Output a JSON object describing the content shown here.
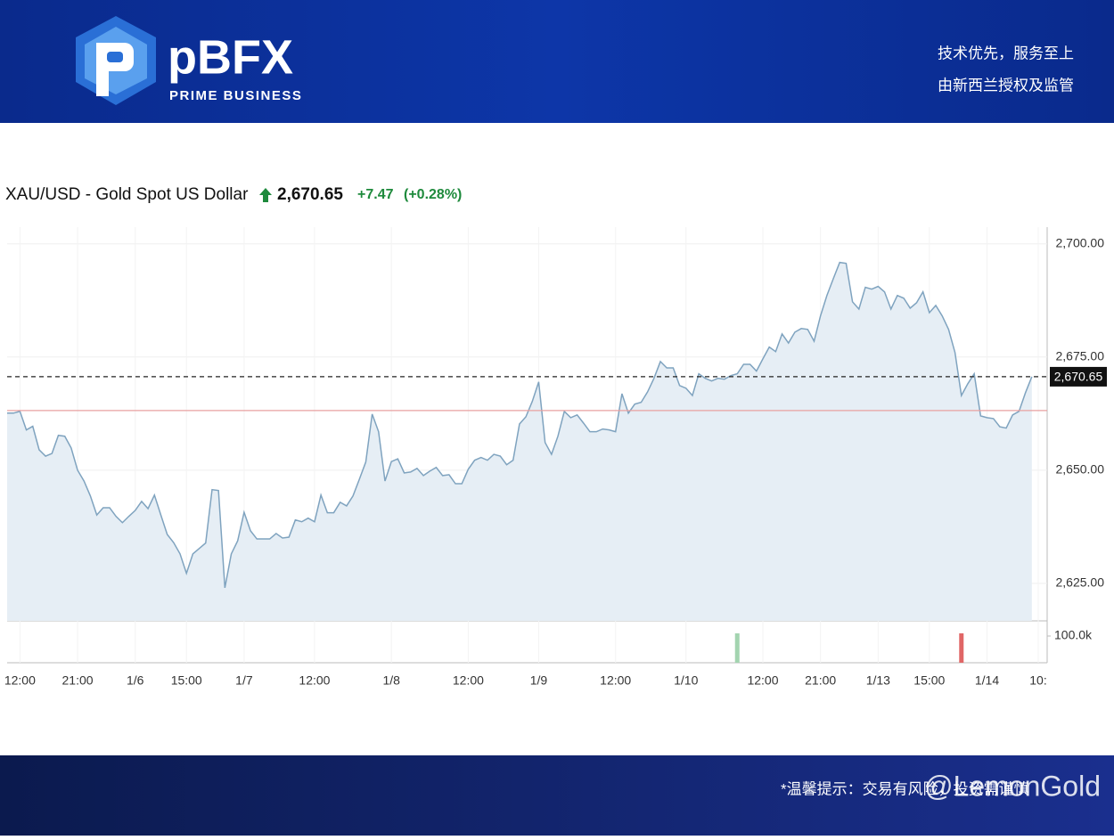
{
  "header": {
    "brand": "pBFX",
    "brand_sub": "PRIME BUSINESS",
    "slogan_1": "技术优先，服务至上",
    "slogan_2": "由新西兰授权及监管"
  },
  "footer": {
    "note": "*温馨提示：交易有风险，投资需谨慎",
    "watermark": "@LemonGold"
  },
  "chart_data": {
    "type": "line",
    "title": "XAU/USD - Gold Spot US Dollar",
    "last_price": {
      "value": 2670.65,
      "label": "2,670.65"
    },
    "change": {
      "value": 7.47,
      "label": "+7.47"
    },
    "change_pct": {
      "value": 0.28,
      "label": "(+0.28%)"
    },
    "previous_close": 2663.18,
    "color": "#7fa3bf",
    "fill": "#e6eef5",
    "up_color": "#1e8a3c",
    "down_color": "#d9363e",
    "categories": [
      null,
      null,
      "12:00",
      null,
      null,
      null,
      null,
      null,
      null,
      null,
      null,
      "21:00",
      null,
      null,
      null,
      null,
      null,
      null,
      null,
      null,
      "1/6",
      null,
      null,
      null,
      null,
      null,
      null,
      null,
      "15:00",
      null,
      null,
      null,
      null,
      null,
      null,
      null,
      null,
      "1/7",
      null,
      null,
      null,
      null,
      null,
      null,
      null,
      null,
      null,
      null,
      "12:00",
      null,
      null,
      null,
      null,
      null,
      null,
      null,
      null,
      null,
      null,
      null,
      "1/8",
      null,
      null,
      null,
      null,
      null,
      null,
      null,
      null,
      null,
      null,
      null,
      "12:00",
      null,
      null,
      null,
      null,
      null,
      null,
      null,
      null,
      null,
      null,
      "1/9",
      null,
      null,
      null,
      null,
      null,
      null,
      null,
      null,
      null,
      null,
      null,
      "12:00",
      null,
      null,
      null,
      null,
      null,
      null,
      null,
      null,
      null,
      null,
      "1/10",
      null,
      null,
      null,
      null,
      null,
      null,
      null,
      null,
      null,
      null,
      null,
      "12:00",
      null,
      null,
      null,
      null,
      null,
      null,
      null,
      null,
      "21:00",
      null,
      null,
      null,
      null,
      null,
      null,
      null,
      null,
      "1/13",
      null,
      null,
      null,
      null,
      null,
      null,
      null,
      "15:00",
      null,
      null,
      null,
      null,
      null,
      null,
      null,
      null,
      "1/14",
      null,
      null,
      null,
      null,
      null,
      null,
      null,
      "10:"
    ],
    "values": [
      2662.6,
      2662.6,
      2663,
      2658.9,
      2659.7,
      2654.5,
      2653.1,
      2653.7,
      2657.7,
      2657.5,
      2654.9,
      2650,
      2647.6,
      2644.3,
      2640.1,
      2641.7,
      2641.7,
      2639.8,
      2638.4,
      2639.8,
      2641.1,
      2643.1,
      2641.5,
      2644.5,
      2640.1,
      2635.8,
      2634,
      2631.5,
      2627.2,
      2631.5,
      2632.7,
      2633.9,
      2645.7,
      2645.5,
      2624,
      2631.5,
      2634.4,
      2640.7,
      2636.6,
      2634.8,
      2634.8,
      2634.8,
      2636,
      2635,
      2635.2,
      2639,
      2638.6,
      2639.4,
      2638.6,
      2644.5,
      2640.6,
      2640.6,
      2642.9,
      2642.1,
      2644.3,
      2648,
      2651.8,
      2662.4,
      2658.5,
      2647.6,
      2651.9,
      2652.5,
      2649.4,
      2649.6,
      2650.4,
      2648.8,
      2649.8,
      2650.6,
      2648.8,
      2649,
      2647,
      2647,
      2650.2,
      2652.2,
      2652.8,
      2652.2,
      2653.5,
      2653.1,
      2651.2,
      2652.2,
      2660.2,
      2661.8,
      2665.2,
      2669.5,
      2656.1,
      2653.5,
      2657.5,
      2663,
      2661.6,
      2662.2,
      2660.4,
      2658.5,
      2658.5,
      2659.1,
      2658.9,
      2658.5,
      2666.9,
      2662.6,
      2664.6,
      2665,
      2667.3,
      2670.3,
      2674,
      2672.6,
      2672.6,
      2668.7,
      2668.1,
      2666.5,
      2671.3,
      2670.3,
      2669.7,
      2670.3,
      2670.1,
      2670.9,
      2671.3,
      2673.4,
      2673.4,
      2671.9,
      2674.6,
      2677.2,
      2676.2,
      2680.1,
      2678.1,
      2680.5,
      2681.3,
      2681.1,
      2678.5,
      2684.1,
      2688.6,
      2692.3,
      2695.9,
      2695.7,
      2687.2,
      2685.6,
      2690.4,
      2690,
      2690.6,
      2689.4,
      2685.6,
      2688.6,
      2688,
      2685.8,
      2687,
      2689.4,
      2684.8,
      2686.4,
      2684.1,
      2681.1,
      2676,
      2666.5,
      2669.1,
      2671.3,
      2662,
      2661.6,
      2661.4,
      2659.6,
      2659.3,
      2662.2,
      2663,
      2667.1,
      2670.65,
      null
    ],
    "ylim": [
      2616.7,
      2703.7
    ],
    "yticks": [
      {
        "value": 2625,
        "label": "2,625.00"
      },
      {
        "value": 2650,
        "label": "2,650.00"
      },
      {
        "value": 2675,
        "label": "2,675.00"
      },
      {
        "value": 2700,
        "label": "2,700.00"
      }
    ],
    "grid": true,
    "volume": {
      "index": [
        114,
        149
      ],
      "values": [
        110000,
        110000
      ],
      "colors": [
        "#a3d4b0",
        "#e06666"
      ],
      "ylim": [
        0,
        156700
      ],
      "yticks": [
        {
          "value": 100000,
          "label": "100.0k"
        }
      ]
    }
  }
}
